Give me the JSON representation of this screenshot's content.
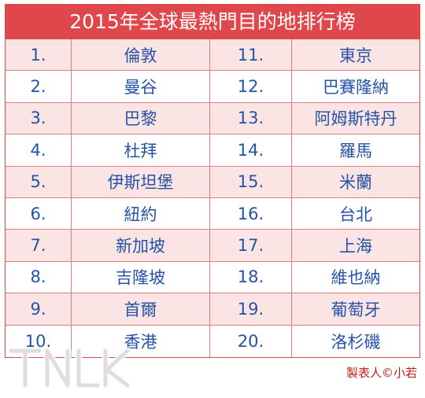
{
  "title": "2015年全球最熱門目的地排行榜",
  "rows": [
    {
      "rank1": "1.",
      "city1": "倫敦",
      "rank2": "11.",
      "city2": "東京"
    },
    {
      "rank1": "2.",
      "city1": "曼谷",
      "rank2": "12.",
      "city2": "巴賽隆納"
    },
    {
      "rank1": "3.",
      "city1": "巴黎",
      "rank2": "13.",
      "city2": "阿姆斯特丹"
    },
    {
      "rank1": "4.",
      "city1": "杜拜",
      "rank2": "14.",
      "city2": "羅馬"
    },
    {
      "rank1": "5.",
      "city1": "伊斯坦堡",
      "rank2": "15.",
      "city2": "米蘭"
    },
    {
      "rank1": "6.",
      "city1": "紐約",
      "rank2": "16.",
      "city2": "台北"
    },
    {
      "rank1": "7.",
      "city1": "新加坡",
      "rank2": "17.",
      "city2": "上海"
    },
    {
      "rank1": "8.",
      "city1": "吉隆坡",
      "rank2": "18.",
      "city2": "維也納"
    },
    {
      "rank1": "9.",
      "city1": "首爾",
      "rank2": "19.",
      "city2": "葡萄牙"
    },
    {
      "rank1": "10.",
      "city1": "香港",
      "rank2": "20.",
      "city2": "洛杉磯"
    }
  ],
  "watermark": "TNLK",
  "credit": "製表人©小若",
  "colors": {
    "header_bg": "#e0474c",
    "shaded_row": "#fbe4e4",
    "text": "#2453a8",
    "credit": "#c21d1d"
  }
}
